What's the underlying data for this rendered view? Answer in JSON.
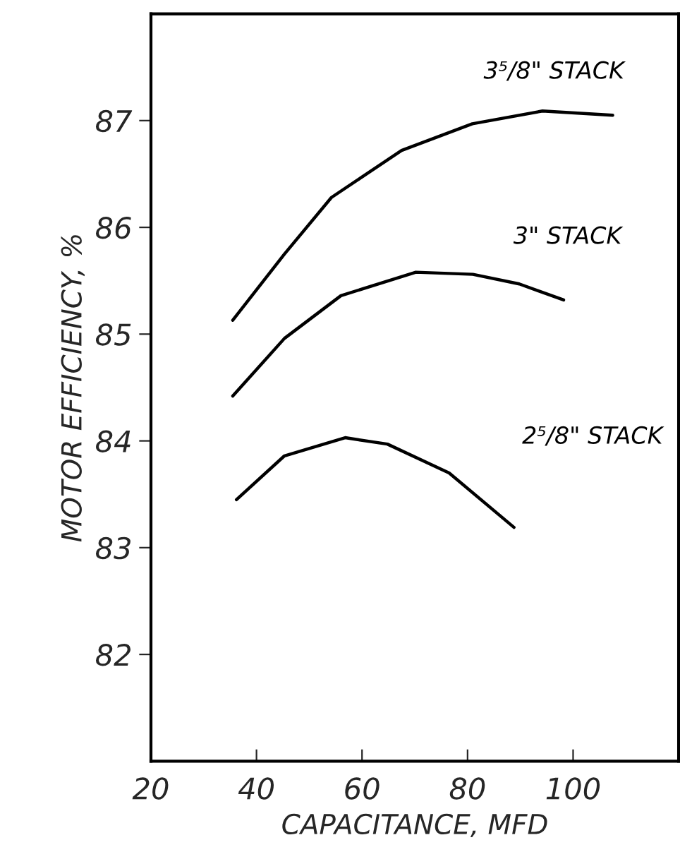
{
  "chart_data": {
    "type": "line",
    "xlabel": "CAPACITANCE, MFD",
    "ylabel": "MOTOR EFFICIENCY, %",
    "xlim": [
      20,
      120
    ],
    "xticks": [
      20,
      40,
      60,
      80,
      100
    ],
    "ylim": [
      81,
      88
    ],
    "yticks": [
      82,
      83,
      84,
      85,
      86,
      87
    ],
    "grid": false,
    "legend": false,
    "marker": "none",
    "line_style": "solid",
    "series": [
      {
        "name": "3⁵/8\" STACK",
        "color": "#000000",
        "x": [
          35.5,
          45.3,
          54.2,
          67.5,
          80.9,
          94.2,
          107.5
        ],
        "values": [
          85.13,
          85.75,
          86.28,
          86.72,
          86.97,
          87.09,
          87.05
        ]
      },
      {
        "name": "3\" STACK",
        "color": "#000000",
        "x": [
          35.5,
          45.3,
          56,
          70.2,
          81,
          89.8,
          98.2
        ],
        "values": [
          84.42,
          84.96,
          85.36,
          85.58,
          85.56,
          85.47,
          85.32
        ]
      },
      {
        "name": "2⁵/8\" STACK",
        "color": "#000000",
        "x": [
          36.2,
          45.3,
          56.8,
          64.8,
          76.5,
          88.8
        ],
        "values": [
          83.45,
          83.86,
          84.03,
          83.97,
          83.7,
          83.19
        ]
      }
    ]
  }
}
